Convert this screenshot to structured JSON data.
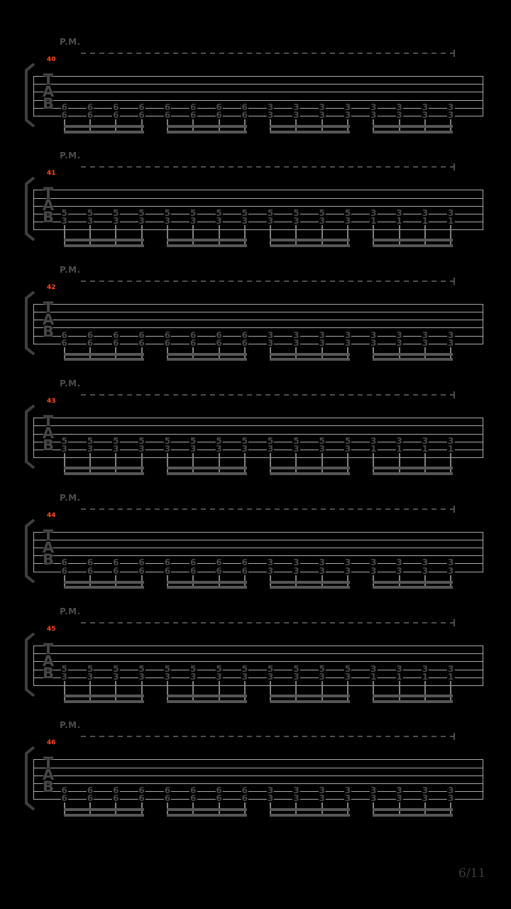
{
  "app": {
    "background": "#000000",
    "page_indicator": "6/11"
  },
  "colors": {
    "measure_number": "#ff4619",
    "staff_line": "#a8a8a8",
    "fret_number": "#484848",
    "stem": "#808080",
    "beam": "#565656",
    "palm_mute": "#4d4d4d",
    "tab_letters": "#464646",
    "bracket": "#3f3f3f",
    "page_indicator": "#3c3c3c"
  },
  "tab": {
    "palm_mute_label": "P.M.",
    "staff_letters": [
      "T",
      "A",
      "B"
    ],
    "strings_per_staff": 6,
    "beam_group_size": 4,
    "systems": [
      {
        "measure": "40",
        "strings": [
          5,
          6
        ],
        "notes": [
          [
            "6",
            "6"
          ],
          [
            "6",
            "6"
          ],
          [
            "6",
            "6"
          ],
          [
            "6",
            "6"
          ],
          [
            "6",
            "6"
          ],
          [
            "6",
            "6"
          ],
          [
            "6",
            "6"
          ],
          [
            "6",
            "6"
          ],
          [
            "3",
            "3"
          ],
          [
            "3",
            "3"
          ],
          [
            "3",
            "3"
          ],
          [
            "3",
            "3"
          ],
          [
            "3",
            "3"
          ],
          [
            "3",
            "3"
          ],
          [
            "3",
            "3"
          ],
          [
            "3",
            "3"
          ]
        ]
      },
      {
        "measure": "41",
        "strings": [
          4,
          5
        ],
        "notes": [
          [
            "5",
            "3"
          ],
          [
            "5",
            "3"
          ],
          [
            "5",
            "3"
          ],
          [
            "5",
            "3"
          ],
          [
            "5",
            "3"
          ],
          [
            "5",
            "3"
          ],
          [
            "5",
            "3"
          ],
          [
            "5",
            "3"
          ],
          [
            "5",
            "3"
          ],
          [
            "5",
            "3"
          ],
          [
            "5",
            "3"
          ],
          [
            "5",
            "3"
          ],
          [
            "3",
            "1"
          ],
          [
            "3",
            "1"
          ],
          [
            "3",
            "1"
          ],
          [
            "3",
            "1"
          ]
        ]
      },
      {
        "measure": "42",
        "strings": [
          5,
          6
        ],
        "notes": [
          [
            "6",
            "6"
          ],
          [
            "6",
            "6"
          ],
          [
            "6",
            "6"
          ],
          [
            "6",
            "6"
          ],
          [
            "6",
            "6"
          ],
          [
            "6",
            "6"
          ],
          [
            "6",
            "6"
          ],
          [
            "6",
            "6"
          ],
          [
            "3",
            "3"
          ],
          [
            "3",
            "3"
          ],
          [
            "3",
            "3"
          ],
          [
            "3",
            "3"
          ],
          [
            "3",
            "3"
          ],
          [
            "3",
            "3"
          ],
          [
            "3",
            "3"
          ],
          [
            "3",
            "3"
          ]
        ]
      },
      {
        "measure": "43",
        "strings": [
          4,
          5
        ],
        "notes": [
          [
            "5",
            "3"
          ],
          [
            "5",
            "3"
          ],
          [
            "5",
            "3"
          ],
          [
            "5",
            "3"
          ],
          [
            "5",
            "3"
          ],
          [
            "5",
            "3"
          ],
          [
            "5",
            "3"
          ],
          [
            "5",
            "3"
          ],
          [
            "5",
            "3"
          ],
          [
            "5",
            "3"
          ],
          [
            "5",
            "3"
          ],
          [
            "5",
            "3"
          ],
          [
            "3",
            "1"
          ],
          [
            "3",
            "1"
          ],
          [
            "3",
            "1"
          ],
          [
            "3",
            "1"
          ]
        ]
      },
      {
        "measure": "44",
        "strings": [
          5,
          6
        ],
        "notes": [
          [
            "6",
            "6"
          ],
          [
            "6",
            "6"
          ],
          [
            "6",
            "6"
          ],
          [
            "6",
            "6"
          ],
          [
            "6",
            "6"
          ],
          [
            "6",
            "6"
          ],
          [
            "6",
            "6"
          ],
          [
            "6",
            "6"
          ],
          [
            "3",
            "3"
          ],
          [
            "3",
            "3"
          ],
          [
            "3",
            "3"
          ],
          [
            "3",
            "3"
          ],
          [
            "3",
            "3"
          ],
          [
            "3",
            "3"
          ],
          [
            "3",
            "3"
          ],
          [
            "3",
            "3"
          ]
        ]
      },
      {
        "measure": "45",
        "strings": [
          4,
          5
        ],
        "notes": [
          [
            "5",
            "3"
          ],
          [
            "5",
            "3"
          ],
          [
            "5",
            "3"
          ],
          [
            "5",
            "3"
          ],
          [
            "5",
            "3"
          ],
          [
            "5",
            "3"
          ],
          [
            "5",
            "3"
          ],
          [
            "5",
            "3"
          ],
          [
            "5",
            "3"
          ],
          [
            "5",
            "3"
          ],
          [
            "5",
            "3"
          ],
          [
            "5",
            "3"
          ],
          [
            "3",
            "1"
          ],
          [
            "3",
            "1"
          ],
          [
            "3",
            "1"
          ],
          [
            "3",
            "1"
          ]
        ]
      },
      {
        "measure": "46",
        "strings": [
          5,
          6
        ],
        "notes": [
          [
            "6",
            "6"
          ],
          [
            "6",
            "6"
          ],
          [
            "6",
            "6"
          ],
          [
            "6",
            "6"
          ],
          [
            "6",
            "6"
          ],
          [
            "6",
            "6"
          ],
          [
            "6",
            "6"
          ],
          [
            "6",
            "6"
          ],
          [
            "3",
            "3"
          ],
          [
            "3",
            "3"
          ],
          [
            "3",
            "3"
          ],
          [
            "3",
            "3"
          ],
          [
            "3",
            "3"
          ],
          [
            "3",
            "3"
          ],
          [
            "3",
            "3"
          ],
          [
            "3",
            "3"
          ]
        ]
      }
    ]
  }
}
